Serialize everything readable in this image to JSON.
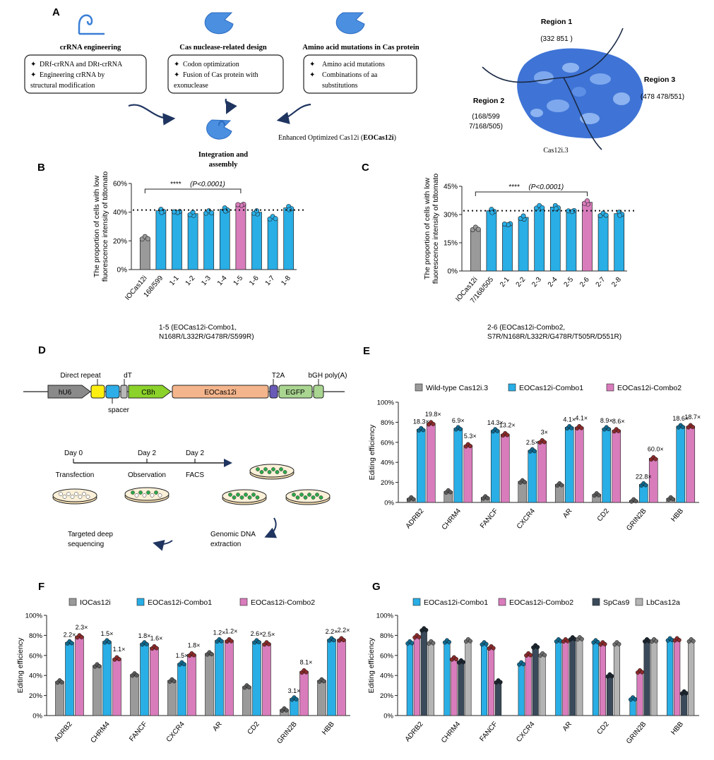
{
  "panels": {
    "A": {
      "letter": "A",
      "box1": {
        "title": "crRNA engineering",
        "items": [
          "DRf-crRNA and DRt-crRNA",
          "Engineering crRNA by",
          "structural modification"
        ]
      },
      "box2": {
        "title": "Cas nuclease-related design",
        "items": [
          "Codon optimization",
          "Fusion of Cas protein with",
          "exonuclease"
        ]
      },
      "box3": {
        "title": "Amino acid mutations in Cas protein",
        "items": [
          "Amino acid mutations",
          "Combinations of aa",
          "substitutions"
        ]
      },
      "integration": [
        "Integration and",
        "assembly"
      ],
      "enhanced_prefix": "Enhanced Optimized Cas12i (",
      "enhanced_bold": "EOCas12i",
      "enhanced_suffix": ")",
      "regions": [
        {
          "name": "Region 1",
          "detail": "(332 851 )"
        },
        {
          "name": "Region 2",
          "detail": "(168/599",
          "detail2": "7/168/505)"
        },
        {
          "name": "Region 3",
          "detail": "(478 478/551)"
        }
      ],
      "protein_label": "Cas12i.3"
    },
    "D": {
      "letter": "D",
      "construct": {
        "hU6": "hU6",
        "direct_repeat": "Direct repeat",
        "spacer": "spacer",
        "dT": "dT",
        "CBh": "CBh",
        "EOCas12i": "EOCas12i",
        "T2A": "T2A",
        "EGFP": "EGFP",
        "bGH": "bGH poly(A)"
      },
      "timeline": {
        "day0": "Day 0",
        "day2a": "Day 2",
        "day2b": "Day 2",
        "transfection": "Transfection",
        "observation": "Observation",
        "facs": "FACS"
      },
      "genomic": [
        "Genomic DNA",
        "extraction"
      ],
      "sequencing": [
        "Targeted deep",
        "sequencing"
      ]
    }
  },
  "colors": {
    "gray": "#9a9a9a",
    "blue": "#29aee6",
    "pink": "#d97cbc",
    "darkslate": "#3a4a5a",
    "lightgray": "#b4b4b4"
  },
  "chart_data": [
    {
      "id": "B",
      "type": "bar",
      "ylabel_line1": "The proportion of cells with low",
      "ylabel_line2": "fluorescence intensity of tdtomato",
      "ylim": [
        0,
        60
      ],
      "yticks": [
        "0%",
        "20%",
        "40%",
        "60%"
      ],
      "categories": [
        "IOCas12i",
        "168/599",
        "1-1",
        "1-2",
        "1-3",
        "1-4",
        "1-5",
        "1-6",
        "1-7",
        "1-8"
      ],
      "values": [
        22,
        41,
        41,
        39,
        40,
        42,
        46,
        40,
        36,
        43
      ],
      "colors": [
        "gray",
        "blue",
        "blue",
        "blue",
        "blue",
        "blue",
        "pink",
        "blue",
        "blue",
        "blue"
      ],
      "reference_line": 41.5,
      "significance": "****",
      "pvalue": "(P<0.0001)",
      "footnote_line1": "1-5 (EOCas12i-Combo1,",
      "footnote_line2": "N168R/L332R/G478R/S599R)"
    },
    {
      "id": "C",
      "type": "bar",
      "ylabel_line1": "The proportion of cells with low",
      "ylabel_line2": "fluorescence intensity of tdtomato",
      "ylim": [
        0,
        45
      ],
      "yticks": [
        "0%",
        "15%",
        "30%",
        "45%"
      ],
      "categories": [
        "IOCas12i",
        "7/168/505",
        "2-1",
        "2-2",
        "2-3",
        "2-4",
        "2-5",
        "2-6",
        "2-7",
        "2-8"
      ],
      "values": [
        22.5,
        32,
        25.5,
        28.5,
        34,
        34,
        32.5,
        36.5,
        30,
        30.5
      ],
      "colors": [
        "gray",
        "blue",
        "blue",
        "blue",
        "blue",
        "blue",
        "blue",
        "pink",
        "blue",
        "blue"
      ],
      "reference_line": 32,
      "significance": "****",
      "pvalue": "(P<0.0001)",
      "footnote_line1": "2-6 (EOCas12i-Combo2,",
      "footnote_line2": "S7R/N168R/L332R/G478R/T505R/D551R)"
    },
    {
      "id": "E",
      "type": "bar",
      "ylabel": "Editing efficiency",
      "ylim": [
        0,
        100
      ],
      "yticks": [
        "0%",
        "20%",
        "40%",
        "60%",
        "80%",
        "100%"
      ],
      "categories": [
        "ADRB2",
        "CHRM4",
        "FANCF",
        "CXCR4",
        "AR",
        "CD2",
        "GRIN2B",
        "HBB"
      ],
      "series": [
        {
          "name": "Wild-type Cas12i.3",
          "color": "gray",
          "values": [
            4,
            11,
            5,
            21,
            18,
            8,
            2,
            4
          ]
        },
        {
          "name": "EOCas12i-Combo1",
          "color": "blue",
          "values": [
            73,
            74,
            72,
            52,
            75,
            74,
            18,
            76
          ]
        },
        {
          "name": "EOCas12i-Combo2",
          "color": "pink",
          "values": [
            79,
            57,
            68,
            61,
            75,
            72,
            44,
            76
          ]
        }
      ],
      "fold_labels": [
        [
          "18.3×",
          "19.8×"
        ],
        [
          "6.9×",
          "5.3×"
        ],
        [
          "14.3×",
          "13.2×"
        ],
        [
          "2.5×",
          "3×"
        ],
        [
          "4.1×",
          "4.1×"
        ],
        [
          "8.9×",
          "8.6×"
        ],
        [
          "22.8×",
          "60.0×"
        ],
        [
          "18.6×",
          "18.7×"
        ]
      ]
    },
    {
      "id": "F",
      "type": "bar",
      "ylabel": "Editing efficiency",
      "ylim": [
        0,
        100
      ],
      "yticks": [
        "0%",
        "20%",
        "40%",
        "60%",
        "80%",
        "100%"
      ],
      "categories": [
        "ADRB2",
        "CHRM4",
        "FANCF",
        "CXCR4",
        "AR",
        "CD2",
        "GRIN2B",
        "HBB"
      ],
      "series": [
        {
          "name": "IOCas12i",
          "color": "gray",
          "values": [
            34,
            50,
            41,
            35,
            62,
            29,
            6,
            35
          ]
        },
        {
          "name": "EOCas12i-Combo1",
          "color": "blue",
          "values": [
            73,
            74,
            72,
            52,
            75,
            74,
            17,
            76
          ]
        },
        {
          "name": "EOCas12i-Combo2",
          "color": "pink",
          "values": [
            79,
            57,
            68,
            61,
            75,
            72,
            44,
            76
          ]
        }
      ],
      "fold_labels": [
        [
          "2.2×",
          "2.3×"
        ],
        [
          "1.5×",
          "1.1×"
        ],
        [
          "1.8×",
          "1.6×"
        ],
        [
          "1.5×",
          "1.8×"
        ],
        [
          "1.2×",
          "1.2×"
        ],
        [
          "2.6×",
          "2.5×"
        ],
        [
          "3.1×",
          "8.1×"
        ],
        [
          "2.2×",
          "2.2×"
        ]
      ]
    },
    {
      "id": "G",
      "type": "bar",
      "ylabel": "Editing efficiency",
      "ylim": [
        0,
        100
      ],
      "yticks": [
        "0%",
        "20%",
        "40%",
        "60%",
        "80%",
        "100%"
      ],
      "categories": [
        "ADRB2",
        "CHRM4",
        "FANCF",
        "CXCR4",
        "AR",
        "CD2",
        "GRIN2B",
        "HBB"
      ],
      "series": [
        {
          "name": "EOCas12i-Combo1",
          "color": "blue",
          "values": [
            73,
            74,
            72,
            52,
            75,
            74,
            17,
            76
          ]
        },
        {
          "name": "EOCas12i-Combo2",
          "color": "pink",
          "values": [
            79,
            57,
            68,
            61,
            75,
            72,
            44,
            76
          ]
        },
        {
          "name": "SpCas9",
          "color": "darkslate",
          "values": [
            86,
            54,
            34,
            69,
            77,
            40,
            75,
            23
          ]
        },
        {
          "name": "LbCas12a",
          "color": "lightgray",
          "values": [
            73,
            75,
            0,
            61,
            77,
            72,
            75,
            75
          ]
        }
      ]
    }
  ]
}
